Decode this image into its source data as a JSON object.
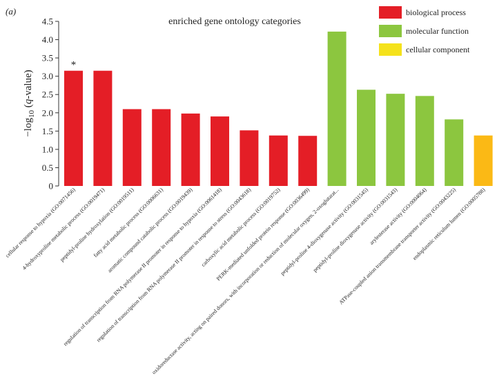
{
  "panel_label": "(a)",
  "chart_data": {
    "type": "bar",
    "title": "enriched gene ontology categories",
    "ylabel_prefix": "−log",
    "ylabel_subscript": "10",
    "ylabel_paren_open": " (",
    "ylabel_italic": "q",
    "ylabel_suffix": "-value)",
    "ylim": [
      0,
      4.5
    ],
    "yticks": [
      "0",
      "0.5",
      "1.0",
      "1.5",
      "2.0",
      "2.5",
      "3.0",
      "3.5",
      "4.0",
      "4.5"
    ],
    "ytick_values": [
      0,
      0.5,
      1.0,
      1.5,
      2.0,
      2.5,
      3.0,
      3.5,
      4.0,
      4.5
    ],
    "grid": false,
    "legend_position": "top-right",
    "legend": [
      {
        "label": "biological process",
        "color": "#e41e26"
      },
      {
        "label": "molecular function",
        "color": "#8cc63f"
      },
      {
        "label": "cellular component",
        "color": "#f5e21b"
      }
    ],
    "categories": [
      "cellular response to hypoxia (GO:0071456)",
      "4-hydroxyproline metabolic process (GO:0019471)",
      "peptidyl-proline hydroxylation (GO:0019511)",
      "fatty acid metabolic process (GO:0006631)",
      "aromatic compound catabolic process (GO:0019439)",
      "regulation of transcription from RNA polymerase II promoter in response to hypoxia (GO:0061418)",
      "regulation of transcription from RNA polymerase II promoter in response to stress (GO:0043618)",
      "carboxylic acid metabolic process (GO:0019752)",
      "PERK-mediated unfolded protein response (GO:0036499)",
      "oxidoreductase activity, acting on paired donors, with incorporation or reduction of molecular oxygen, 2-oxoglutarat...",
      "peptidyl-proline 4-dioxygenase activity (GO:0031545)",
      "peptidyl-proline dioxygenase activity (GO:0031543)",
      "arylesterase activity (GO:0004064)",
      "ATPase-coupled anion transmembrane transporter activity (GO:0043225)",
      "endoplasmic reticulum lumen (GO:0005788)"
    ],
    "values": [
      3.15,
      3.15,
      2.1,
      2.1,
      1.98,
      1.9,
      1.52,
      1.38,
      1.37,
      4.22,
      2.63,
      2.52,
      2.46,
      1.82,
      1.38
    ],
    "bar_colors": [
      "#e41e26",
      "#e41e26",
      "#e41e26",
      "#e41e26",
      "#e41e26",
      "#e41e26",
      "#e41e26",
      "#e41e26",
      "#e41e26",
      "#8cc63f",
      "#8cc63f",
      "#8cc63f",
      "#8cc63f",
      "#8cc63f",
      "#fbb915"
    ],
    "annotations": [
      {
        "category_index": 0,
        "text": "*"
      }
    ]
  }
}
